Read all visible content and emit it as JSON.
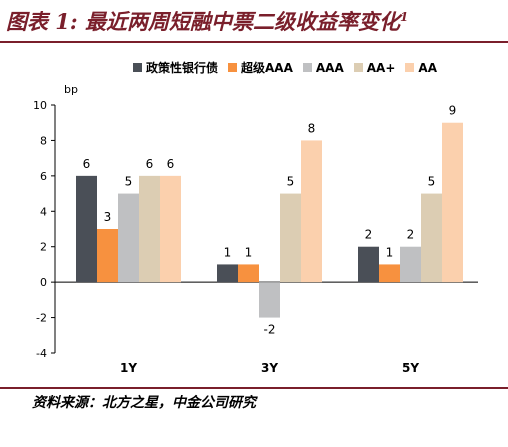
{
  "header": {
    "title": "图表 1: 最近两周短融中票二级收益率变化",
    "title_sup": "1"
  },
  "source": "资料来源：北方之星，中金公司研究",
  "colors": {
    "accent": "#7a1f2b",
    "axis": "#000000"
  },
  "chart_data": {
    "type": "bar",
    "title": "图表 1: 最近两周短融中票二级收益率变化",
    "ylabel": "bp",
    "xlabel": "",
    "ylim": [
      -4,
      10
    ],
    "yticks": [
      -4,
      -2,
      0,
      2,
      4,
      6,
      8,
      10
    ],
    "grid": false,
    "legend_position": "top",
    "categories": [
      "1Y",
      "3Y",
      "5Y"
    ],
    "series": [
      {
        "name": "政策性银行债",
        "color": "#4a4f57",
        "values": [
          6,
          1,
          2
        ]
      },
      {
        "name": "超级AAA",
        "color": "#f7913f",
        "values": [
          3,
          1,
          1
        ]
      },
      {
        "name": "AAA",
        "color": "#bfc0c2",
        "values": [
          5,
          -2,
          2
        ]
      },
      {
        "name": "AA+",
        "color": "#dccdb3",
        "values": [
          6,
          5,
          5
        ]
      },
      {
        "name": "AA",
        "color": "#fbd0ad",
        "values": [
          6,
          8,
          9
        ]
      }
    ]
  }
}
